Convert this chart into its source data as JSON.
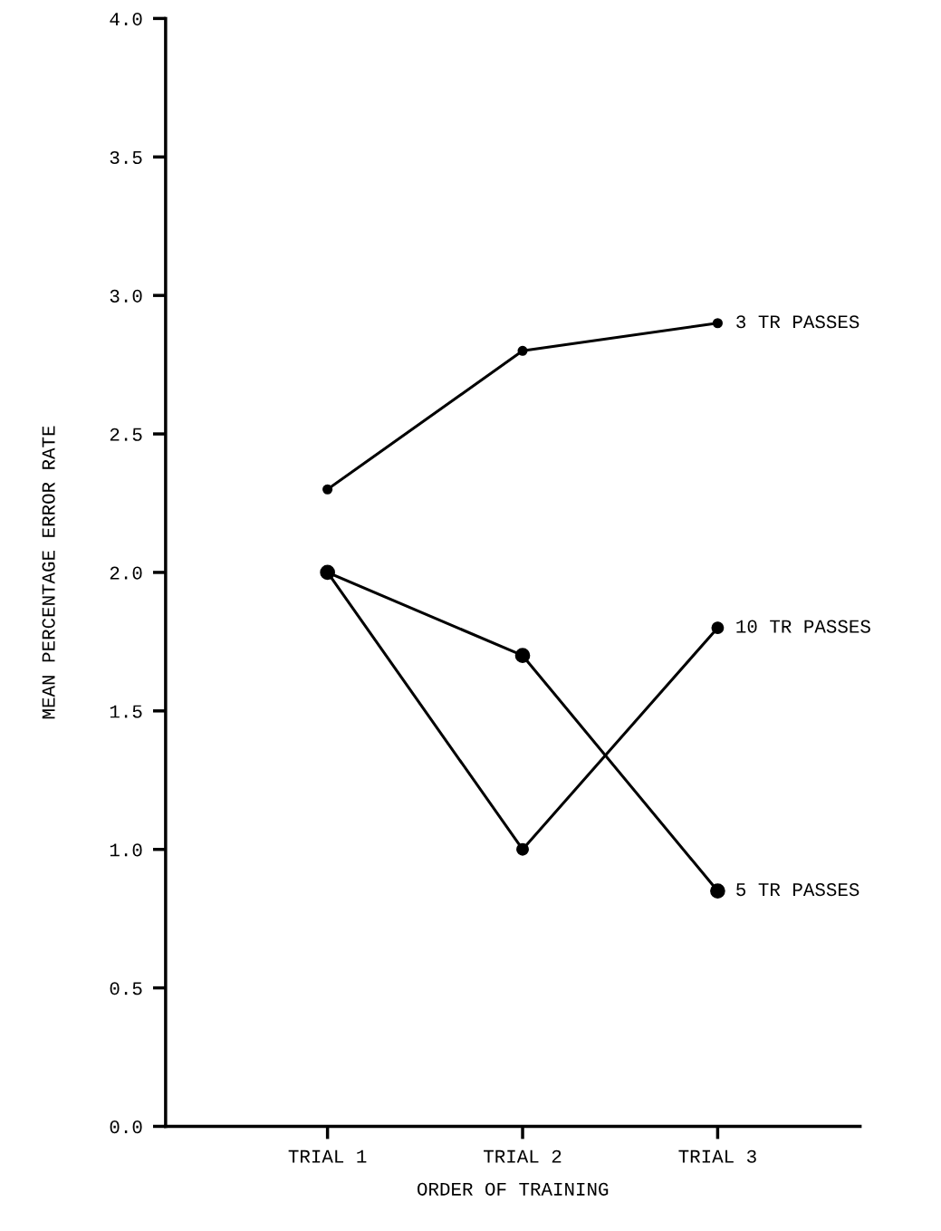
{
  "chart_data": {
    "type": "line",
    "xlabel": "ORDER OF TRAINING",
    "ylabel": "MEAN PERCENTAGE ERROR RATE",
    "categories": [
      "TRIAL 1",
      "TRIAL 2",
      "TRIAL 3"
    ],
    "series": [
      {
        "name": "3 TR PASSES",
        "color": "#000000",
        "values": [
          2.3,
          2.8,
          2.9
        ]
      },
      {
        "name": "10 TR PASSES",
        "color": "#000000",
        "values": [
          2.0,
          1.0,
          1.8
        ]
      },
      {
        "name": "5 TR PASSES",
        "color": "#000000",
        "values": [
          2.0,
          1.7,
          0.85
        ]
      }
    ],
    "ylim": [
      0,
      4
    ],
    "yticks": [
      {
        "value": 0,
        "label": "0.0"
      },
      {
        "value": 0.5,
        "label": "0.5"
      },
      {
        "value": 1,
        "label": "1.0"
      },
      {
        "value": 1.5,
        "label": "1.5"
      },
      {
        "value": 2,
        "label": "2.0"
      },
      {
        "value": 2.5,
        "label": "2.5"
      },
      {
        "value": 3,
        "label": "3.0"
      },
      {
        "value": 3.5,
        "label": "3.5"
      },
      {
        "value": 4,
        "label": "4.0"
      }
    ],
    "marker": "circle",
    "line_style": "solid",
    "grid": false,
    "legend": false
  }
}
